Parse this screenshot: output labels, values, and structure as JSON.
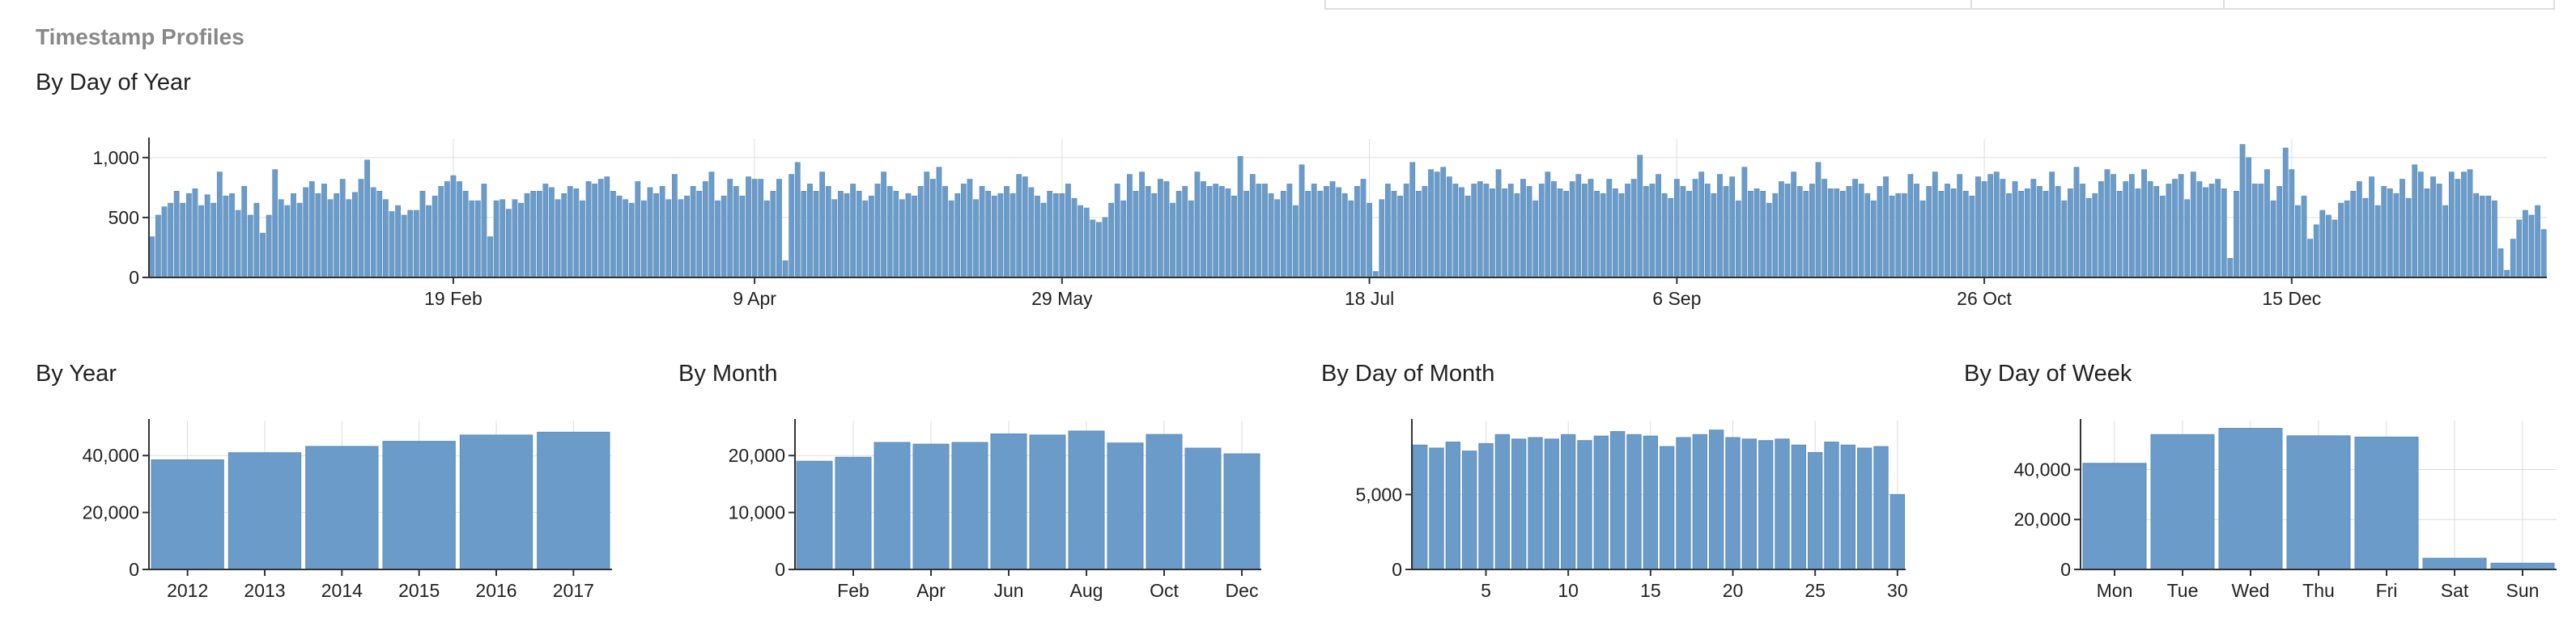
{
  "section": {
    "title": "Timestamp Profiles"
  },
  "colors": {
    "bar": "#6b9bc8",
    "bar_stroke": "#5d8dbc",
    "grid": "#dddddd",
    "axis": "#333333"
  },
  "chart_data": [
    {
      "id": "doy",
      "type": "bar",
      "title": "By Day of Year",
      "xlabel": "",
      "ylabel": "",
      "ylim": [
        0,
        1100
      ],
      "y_ticks": [
        0,
        500,
        1000
      ],
      "y_tick_labels": [
        "0",
        "500",
        "1,000"
      ],
      "x_ticks": [
        {
          "day": 50,
          "label": "19 Feb"
        },
        {
          "day": 99,
          "label": "9 Apr"
        },
        {
          "day": 149,
          "label": "29 May"
        },
        {
          "day": 199,
          "label": "18 Jul"
        },
        {
          "day": 249,
          "label": "6 Sep"
        },
        {
          "day": 299,
          "label": "26 Oct"
        },
        {
          "day": 349,
          "label": "15 Dec"
        }
      ],
      "values": [
        340,
        520,
        590,
        620,
        720,
        620,
        700,
        740,
        600,
        690,
        620,
        880,
        680,
        700,
        560,
        760,
        520,
        620,
        370,
        520,
        900,
        650,
        600,
        700,
        620,
        750,
        800,
        700,
        780,
        650,
        700,
        820,
        650,
        710,
        820,
        980,
        750,
        720,
        650,
        550,
        600,
        520,
        560,
        560,
        720,
        600,
        680,
        760,
        800,
        850,
        800,
        720,
        640,
        640,
        780,
        340,
        640,
        650,
        570,
        650,
        620,
        700,
        720,
        720,
        780,
        750,
        650,
        700,
        760,
        740,
        640,
        800,
        780,
        820,
        840,
        720,
        680,
        650,
        620,
        800,
        640,
        750,
        700,
        760,
        650,
        860,
        650,
        680,
        760,
        720,
        800,
        880,
        640,
        680,
        820,
        760,
        680,
        840,
        820,
        820,
        640,
        720,
        820,
        140,
        860,
        960,
        720,
        780,
        720,
        880,
        760,
        650,
        720,
        700,
        780,
        720,
        640,
        680,
        780,
        880,
        760,
        720,
        650,
        700,
        680,
        760,
        880,
        820,
        920,
        760,
        640,
        700,
        780,
        820,
        650,
        760,
        720,
        680,
        700,
        760,
        700,
        860,
        840,
        750,
        680,
        620,
        720,
        700,
        700,
        780,
        660,
        600,
        580,
        480,
        460,
        500,
        620,
        780,
        640,
        860,
        720,
        880,
        760,
        700,
        820,
        800,
        620,
        720,
        760,
        640,
        880,
        800,
        760,
        780,
        760,
        740,
        680,
        1010,
        720,
        860,
        780,
        780,
        700,
        650,
        720,
        780,
        600,
        940,
        720,
        780,
        720,
        760,
        800,
        750,
        700,
        640,
        760,
        820,
        620,
        50,
        650,
        780,
        720,
        680,
        780,
        960,
        720,
        760,
        900,
        880,
        920,
        840,
        780,
        750,
        680,
        780,
        800,
        780,
        740,
        900,
        740,
        780,
        700,
        820,
        760,
        640,
        780,
        880,
        800,
        740,
        720,
        800,
        860,
        780,
        820,
        720,
        700,
        820,
        740,
        700,
        780,
        820,
        1020,
        760,
        780,
        860,
        700,
        660,
        820,
        760,
        720,
        820,
        880,
        780,
        700,
        860,
        760,
        840,
        640,
        920,
        720,
        740,
        720,
        620,
        700,
        800,
        780,
        880,
        760,
        720,
        780,
        960,
        820,
        740,
        740,
        720,
        760,
        820,
        780,
        700,
        640,
        760,
        840,
        680,
        700,
        700,
        860,
        780,
        640,
        760,
        880,
        720,
        780,
        740,
        860,
        720,
        680,
        840,
        800,
        860,
        880,
        820,
        700,
        800,
        720,
        740,
        820,
        760,
        720,
        880,
        760,
        640,
        740,
        920,
        780,
        660,
        700,
        800,
        900,
        860,
        720,
        800,
        860,
        740,
        900,
        800,
        760,
        680,
        780,
        820,
        860,
        650,
        880,
        800,
        750,
        780,
        820,
        740,
        160,
        720,
        1110,
        1000,
        780,
        780,
        900,
        640,
        760,
        1080,
        900,
        600,
        680,
        320,
        440,
        560,
        520,
        480,
        620,
        640,
        720,
        800,
        660,
        840,
        600,
        760,
        740,
        700,
        820,
        660,
        940,
        880,
        740,
        840,
        780,
        600,
        880,
        820,
        880,
        900,
        700,
        680,
        680,
        640,
        240,
        60,
        320,
        480,
        560,
        520,
        600,
        400
      ]
    },
    {
      "id": "year",
      "type": "bar",
      "title": "By Year",
      "xlabel": "",
      "ylabel": "",
      "categories": [
        "2012",
        "2013",
        "2014",
        "2015",
        "2016",
        "2017"
      ],
      "values": [
        38500,
        41000,
        43200,
        45000,
        47200,
        48200
      ],
      "ylim": [
        0,
        50000
      ],
      "y_ticks": [
        0,
        20000,
        40000
      ],
      "y_tick_labels": [
        "0",
        "20,000",
        "40,000"
      ]
    },
    {
      "id": "month",
      "type": "bar",
      "title": "By Month",
      "xlabel": "",
      "ylabel": "",
      "categories_shown": [
        "Feb",
        "Apr",
        "Jun",
        "Aug",
        "Oct",
        "Dec"
      ],
      "values": [
        19000,
        19700,
        22300,
        22000,
        22300,
        23800,
        23600,
        24300,
        22200,
        23700,
        21300,
        20300
      ],
      "ylim": [
        0,
        25000
      ],
      "y_ticks": [
        0,
        10000,
        20000
      ],
      "y_tick_labels": [
        "0",
        "10,000",
        "20,000"
      ]
    },
    {
      "id": "dom",
      "type": "bar",
      "title": "By Day of Month",
      "xlabel": "",
      "ylabel": "",
      "x_tick_labels": [
        "5",
        "10",
        "15",
        "20",
        "25",
        "30"
      ],
      "values": [
        8300,
        8100,
        8500,
        7900,
        8400,
        9000,
        8700,
        8800,
        8700,
        9000,
        8600,
        8900,
        9200,
        9000,
        8900,
        8200,
        8800,
        9000,
        9300,
        8800,
        8700,
        8600,
        8700,
        8300,
        7800,
        8500,
        8300,
        8100,
        8200,
        5000
      ],
      "ylim": [
        0,
        9500
      ],
      "y_ticks": [
        0,
        5000
      ],
      "y_tick_labels": [
        "0",
        "5,000"
      ]
    },
    {
      "id": "dow",
      "type": "bar",
      "title": "By Day of Week",
      "xlabel": "",
      "ylabel": "",
      "categories": [
        "Mon",
        "Tue",
        "Wed",
        "Thu",
        "Fri",
        "Sat",
        "Sun"
      ],
      "values": [
        42500,
        54000,
        56500,
        53500,
        53000,
        4500,
        2500
      ],
      "ylim": [
        0,
        57000
      ],
      "y_ticks": [
        0,
        20000,
        40000
      ],
      "y_tick_labels": [
        "0",
        "20,000",
        "40,000"
      ]
    }
  ]
}
